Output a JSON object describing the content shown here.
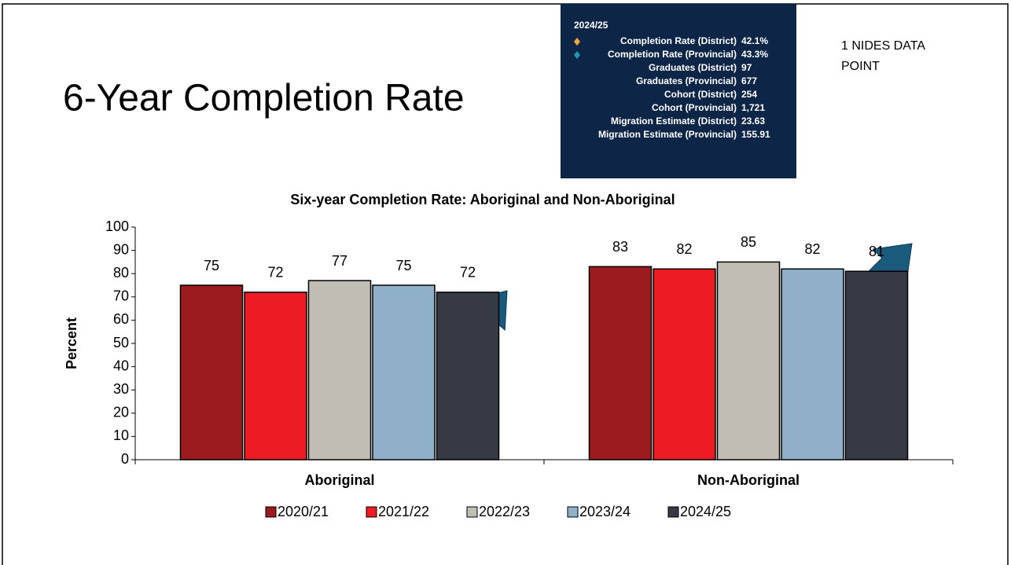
{
  "slide_title": "6-Year Completion Rate",
  "tooltip": {
    "title": "2024/25",
    "rows": [
      {
        "label": "Completion Rate (District)",
        "value": "42.1%"
      },
      {
        "label": "Completion Rate (Provincial)",
        "value": "43.3%"
      },
      {
        "label": "Graduates (District)",
        "value": "97"
      },
      {
        "label": "Graduates (Provincial)",
        "value": "677"
      },
      {
        "label": "Cohort (District)",
        "value": "254"
      },
      {
        "label": "Cohort (Provincial)",
        "value": "1,721"
      },
      {
        "label": "Migration Estimate (District)",
        "value": "23.63"
      },
      {
        "label": "Migration Estimate (Provincial)",
        "value": "155.91"
      }
    ]
  },
  "note": "1 NIDES DATA POINT",
  "chart_data": {
    "type": "bar",
    "title": "Six-year Completion Rate: Aboriginal and Non-Aboriginal",
    "ylabel": "Percent",
    "categories": [
      "Aboriginal",
      "Non-Aboriginal"
    ],
    "series": [
      {
        "name": "2020/21",
        "color": "#9b1b1f",
        "values": [
          75,
          83
        ]
      },
      {
        "name": "2021/22",
        "color": "#ed1c24",
        "values": [
          72,
          82
        ]
      },
      {
        "name": "2022/23",
        "color": "#c0bdb5",
        "values": [
          77,
          85
        ]
      },
      {
        "name": "2023/24",
        "color": "#8fb0c8",
        "values": [
          75,
          82
        ]
      },
      {
        "name": "2024/25",
        "color": "#363a45",
        "values": [
          72,
          81
        ]
      }
    ],
    "ylim": [
      0,
      100
    ],
    "yticks": [
      0,
      10,
      20,
      30,
      40,
      50,
      60,
      70,
      80,
      90,
      100
    ]
  }
}
